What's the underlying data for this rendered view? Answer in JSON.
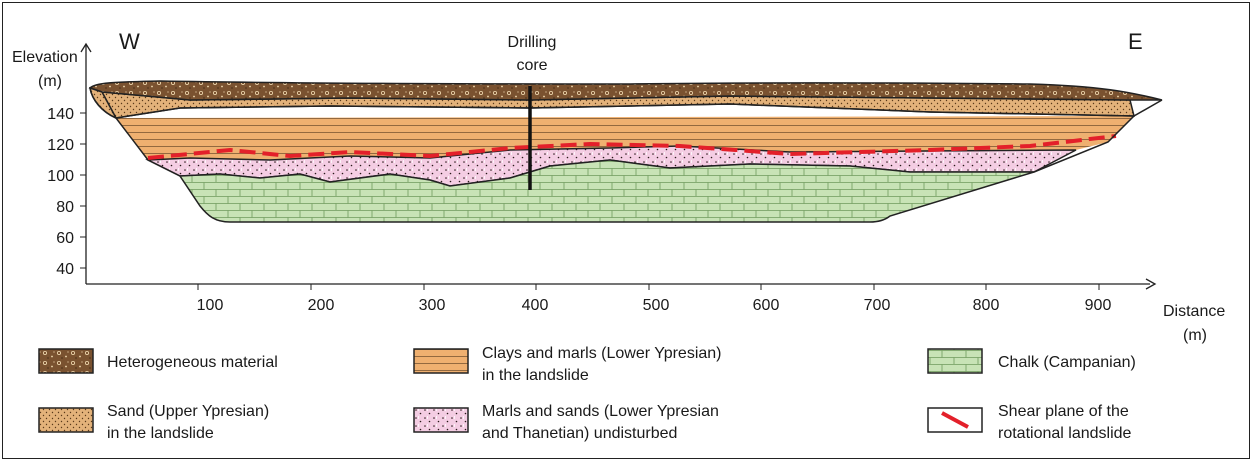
{
  "compass": {
    "west": "W",
    "east": "E"
  },
  "axes": {
    "y_label_line1": "Elevation",
    "y_label_line2": "(m)",
    "x_label_line1": "Distance",
    "x_label_line2": "(m)",
    "y_ticks": [
      "140",
      "120",
      "100",
      "80",
      "60",
      "40"
    ],
    "x_ticks": [
      "100",
      "200",
      "300",
      "400",
      "500",
      "600",
      "700",
      "800",
      "900"
    ]
  },
  "drilling": {
    "line1": "Drilling",
    "line2": "core"
  },
  "colors": {
    "heterogeneous": "#7a5230",
    "sand": "#e3b27a",
    "clay": "#efb070",
    "marl_sand": "#f4cde3",
    "chalk": "#c8e3b6",
    "shear": "#e3202a"
  },
  "legend": [
    {
      "line1": "Heterogeneous material",
      "line2": ""
    },
    {
      "line1": "Clays and marls (Lower Ypresian)",
      "line2": "in the landslide"
    },
    {
      "line1": "Chalk (Campanian)",
      "line2": ""
    },
    {
      "line1": "Sand (Upper Ypresian)",
      "line2": "in the landslide"
    },
    {
      "line1": "Marls and sands (Lower Ypresian",
      "line2": "and Thanetian) undisturbed"
    },
    {
      "line1": "Shear plane of the",
      "line2": "rotational landslide"
    }
  ]
}
